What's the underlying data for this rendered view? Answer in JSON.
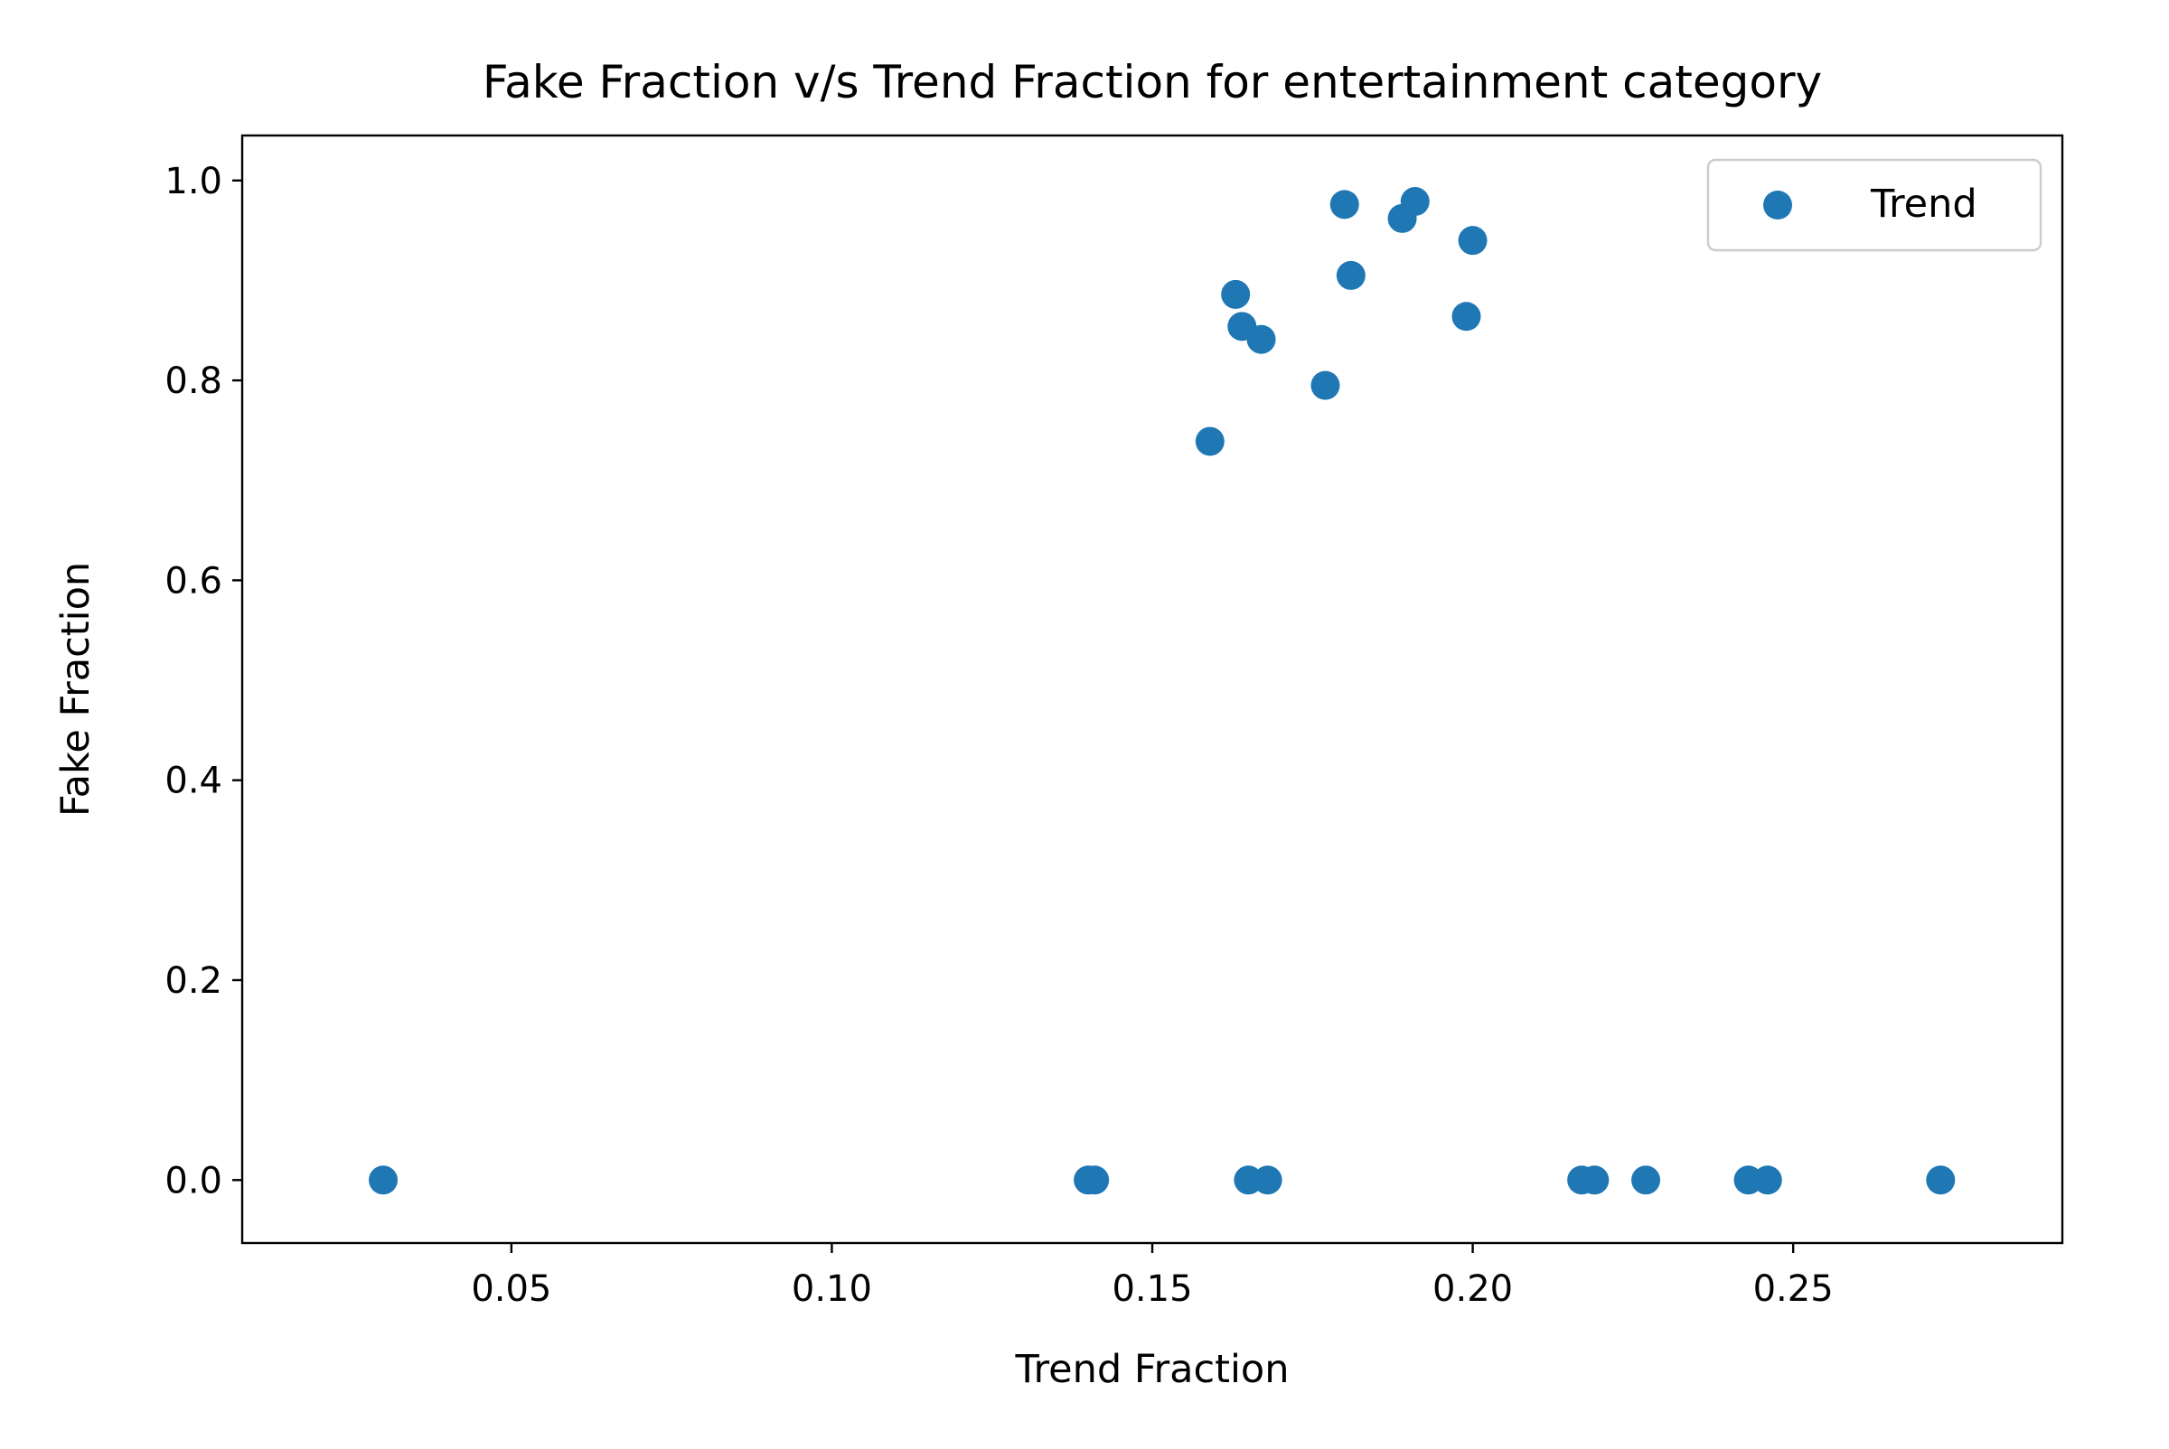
{
  "chart_data": {
    "type": "scatter",
    "title": "Fake Fraction v/s Trend Fraction for entertainment category",
    "xlabel": "Trend Fraction",
    "ylabel": "Fake Fraction",
    "xlim": [
      0.008,
      0.292
    ],
    "ylim": [
      -0.063,
      1.045
    ],
    "xticks": [
      0.05,
      0.1,
      0.15,
      0.2,
      0.25
    ],
    "xtick_labels": [
      "0.05",
      "0.10",
      "0.15",
      "0.20",
      "0.25"
    ],
    "yticks": [
      0.0,
      0.2,
      0.4,
      0.6,
      0.8,
      1.0
    ],
    "ytick_labels": [
      "0.0",
      "0.2",
      "0.4",
      "0.6",
      "0.8",
      "1.0"
    ],
    "grid": false,
    "legend": {
      "position": "top-right",
      "entries": [
        "Trend"
      ]
    },
    "series": [
      {
        "name": "Trend",
        "color": "#1f77b4",
        "points": [
          {
            "x": 0.03,
            "y": 0.0
          },
          {
            "x": 0.14,
            "y": 0.0
          },
          {
            "x": 0.141,
            "y": 0.0
          },
          {
            "x": 0.165,
            "y": 0.0
          },
          {
            "x": 0.168,
            "y": 0.0
          },
          {
            "x": 0.217,
            "y": 0.0
          },
          {
            "x": 0.219,
            "y": 0.0
          },
          {
            "x": 0.227,
            "y": 0.0
          },
          {
            "x": 0.243,
            "y": 0.0
          },
          {
            "x": 0.246,
            "y": 0.0
          },
          {
            "x": 0.273,
            "y": 0.0
          },
          {
            "x": 0.159,
            "y": 0.739
          },
          {
            "x": 0.163,
            "y": 0.886
          },
          {
            "x": 0.164,
            "y": 0.854
          },
          {
            "x": 0.167,
            "y": 0.841
          },
          {
            "x": 0.177,
            "y": 0.795
          },
          {
            "x": 0.18,
            "y": 0.976
          },
          {
            "x": 0.181,
            "y": 0.905
          },
          {
            "x": 0.189,
            "y": 0.962
          },
          {
            "x": 0.191,
            "y": 0.979
          },
          {
            "x": 0.199,
            "y": 0.864
          },
          {
            "x": 0.2,
            "y": 0.94
          }
        ]
      }
    ]
  }
}
